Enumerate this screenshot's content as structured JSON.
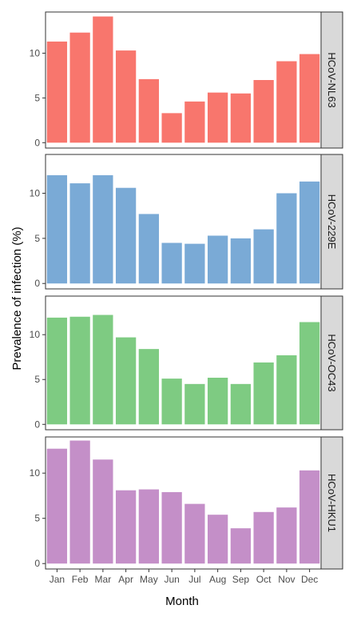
{
  "chart_data": {
    "type": "bar",
    "xlabel": "Month",
    "ylabel": "Prevalence of infection (%)",
    "categories": [
      "Jan",
      "Feb",
      "Mar",
      "Apr",
      "May",
      "Jun",
      "Jul",
      "Aug",
      "Sep",
      "Oct",
      "Nov",
      "Dec"
    ],
    "y_ticks": [
      0,
      5,
      10
    ],
    "grid": false,
    "legend": "none",
    "series": [
      {
        "name": "HCoV-NL63",
        "color": "#F8766D",
        "ylim": [
          -0.6,
          14.6
        ],
        "values": [
          11.3,
          12.3,
          14.1,
          10.3,
          7.1,
          3.3,
          4.6,
          5.6,
          5.5,
          7.0,
          9.1,
          9.9
        ]
      },
      {
        "name": "HCoV-229E",
        "color": "#7AAAD6",
        "ylim": [
          -0.6,
          14.3
        ],
        "values": [
          12.0,
          11.1,
          12.0,
          10.6,
          7.7,
          4.5,
          4.4,
          5.3,
          5.0,
          6.0,
          10.0,
          11.3
        ]
      },
      {
        "name": "HCoV-OC43",
        "color": "#7ECB82",
        "ylim": [
          -0.6,
          14.3
        ],
        "values": [
          11.9,
          12.0,
          12.2,
          9.7,
          8.4,
          5.1,
          4.5,
          5.2,
          4.5,
          6.9,
          7.7,
          11.4
        ]
      },
      {
        "name": "HCoV-HKU1",
        "color": "#C48FC8",
        "ylim": [
          -0.6,
          14.0
        ],
        "values": [
          12.7,
          13.6,
          11.5,
          8.1,
          8.2,
          7.9,
          6.6,
          5.4,
          3.9,
          5.7,
          6.2,
          10.3
        ]
      }
    ]
  }
}
